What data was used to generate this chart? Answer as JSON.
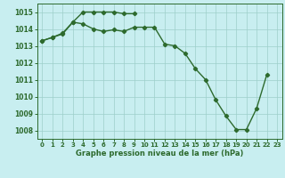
{
  "line1_x": [
    0,
    1,
    2,
    3,
    4,
    5,
    6,
    7,
    8,
    9,
    10,
    11,
    12,
    13,
    14,
    15,
    16,
    17,
    18,
    19,
    20,
    21,
    22
  ],
  "line1_y": [
    1013.3,
    1013.5,
    1013.7,
    1014.4,
    1014.3,
    1014.0,
    1013.85,
    1013.95,
    1013.85,
    1014.1,
    1014.1,
    1014.1,
    1013.1,
    1013.0,
    1012.55,
    1011.65,
    1011.0,
    1009.8,
    1008.85,
    1008.05,
    1008.05,
    1009.3,
    1011.3
  ],
  "line2_x": [
    0,
    1,
    2,
    3,
    4,
    5,
    6,
    7,
    8,
    9
  ],
  "line2_y": [
    1013.3,
    1013.5,
    1013.75,
    1014.4,
    1015.0,
    1015.0,
    1015.0,
    1015.0,
    1014.9,
    1014.9
  ],
  "line_color": "#2d6a2d",
  "bg_color": "#c8eef0",
  "grid_color": "#9ecfca",
  "xlabel": "Graphe pression niveau de la mer (hPa)",
  "ylim": [
    1007.5,
    1015.5
  ],
  "xlim": [
    -0.5,
    23.5
  ],
  "yticks": [
    1008,
    1009,
    1010,
    1011,
    1012,
    1013,
    1014,
    1015
  ],
  "xticks": [
    0,
    1,
    2,
    3,
    4,
    5,
    6,
    7,
    8,
    9,
    10,
    11,
    12,
    13,
    14,
    15,
    16,
    17,
    18,
    19,
    20,
    21,
    22,
    23
  ]
}
